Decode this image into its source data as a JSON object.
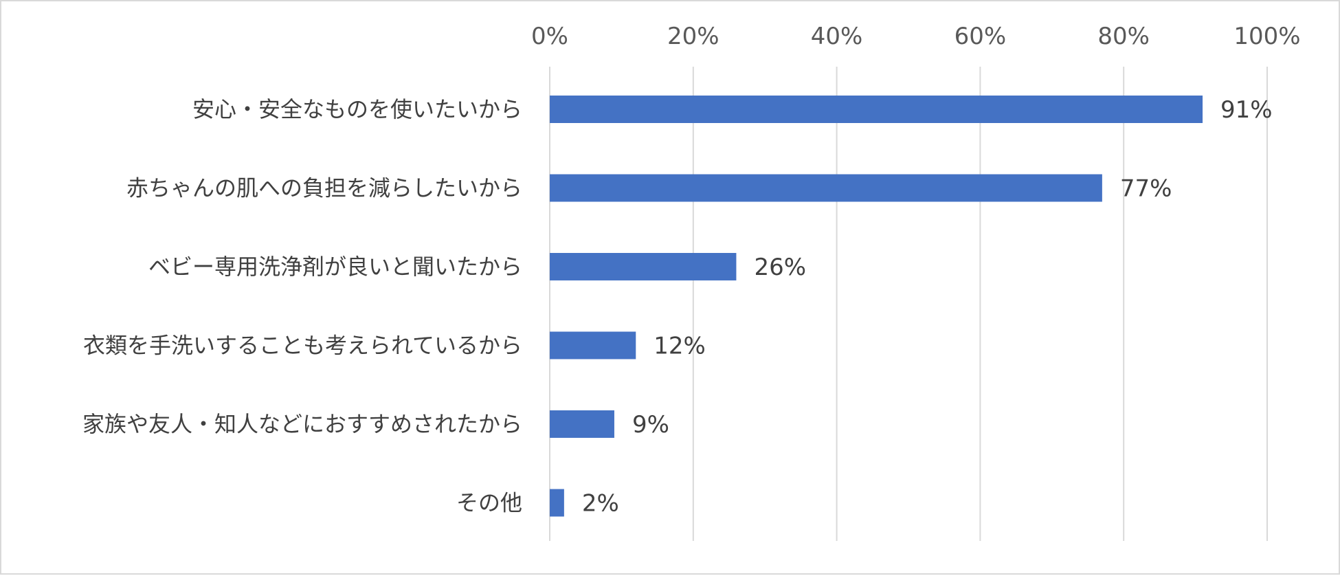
{
  "chart_data": {
    "type": "bar",
    "orientation": "horizontal",
    "categories": [
      "安心・安全なものを使いたいから",
      "赤ちゃんの肌への負担を減らしたいから",
      "ベビー専用洗浄剤が良いと聞いたから",
      "衣類を手洗いすることも考えられているから",
      "家族や友人・知人などにおすすめされたから",
      "その他"
    ],
    "values": [
      91,
      77,
      26,
      12,
      9,
      2
    ],
    "data_labels": [
      "91%",
      "77%",
      "26%",
      "12%",
      "9%",
      "2%"
    ],
    "xlim": [
      0,
      100
    ],
    "x_ticks": [
      0,
      20,
      40,
      60,
      80,
      100
    ],
    "x_tick_labels": [
      "0%",
      "20%",
      "40%",
      "60%",
      "80%",
      "100%"
    ],
    "axis_position": "top",
    "grid": true,
    "legend": "none",
    "colors": {
      "bar": "#4472c4",
      "grid": "#d9d9d9",
      "border": "#d9d9d9"
    }
  }
}
